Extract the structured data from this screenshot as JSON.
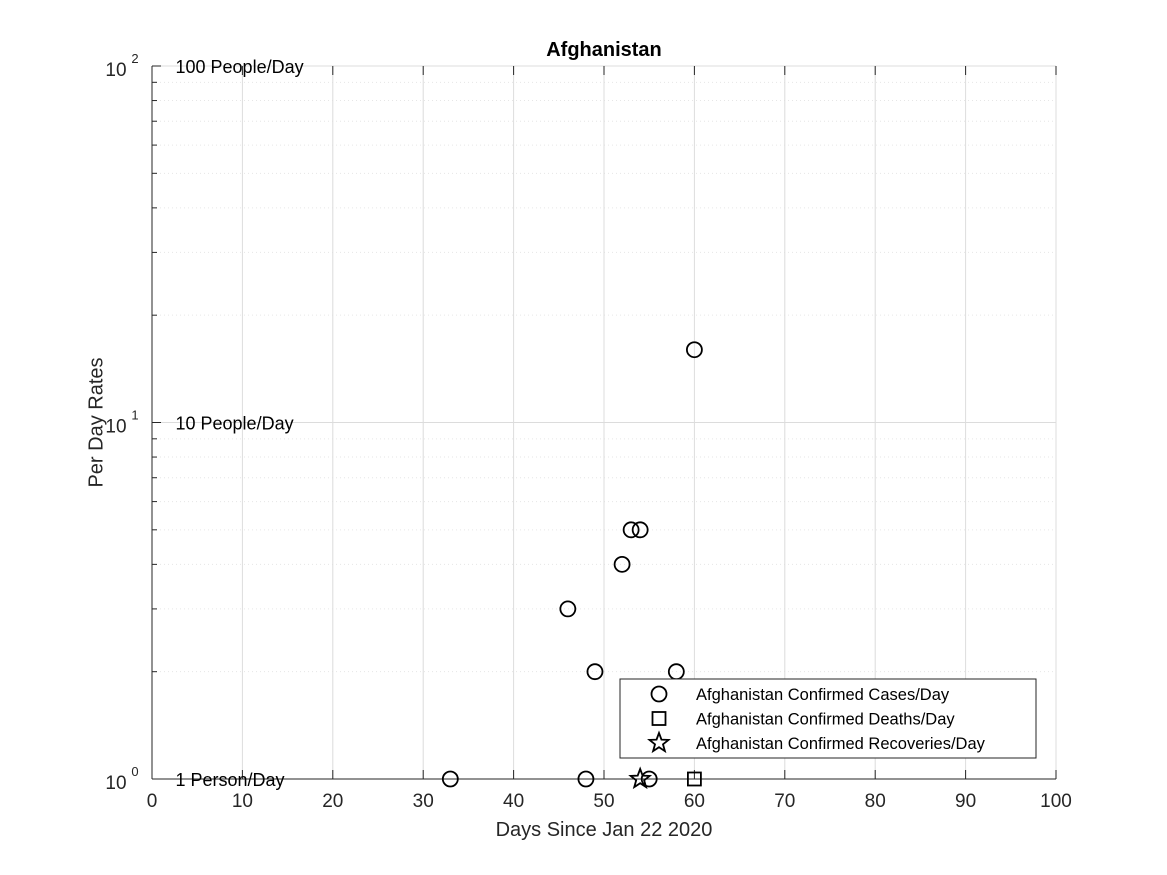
{
  "chart_data": {
    "type": "scatter",
    "title": "Afghanistan",
    "xlabel": "Days Since Jan 22 2020",
    "ylabel": "Per Day Rates",
    "xlim": [
      0,
      100
    ],
    "ylim": [
      1,
      100
    ],
    "yscale": "log",
    "grid": true,
    "x_ticks": [
      0,
      10,
      20,
      30,
      40,
      50,
      60,
      70,
      80,
      90,
      100
    ],
    "y_ticks": [
      {
        "value": 1,
        "base": "10",
        "exp": "0"
      },
      {
        "value": 10,
        "base": "10",
        "exp": "1"
      },
      {
        "value": 100,
        "base": "10",
        "exp": "2"
      }
    ],
    "annotations": [
      {
        "text": "100 People/Day",
        "y": 100
      },
      {
        "text": "10 People/Day",
        "y": 10
      },
      {
        "text": "1 Person/Day",
        "y": 1
      }
    ],
    "legend_position": "bottom-right",
    "series": [
      {
        "name": "Afghanistan Confirmed Cases/Day",
        "marker": "circle",
        "color": "#000000",
        "points": [
          {
            "x": 33,
            "y": 1
          },
          {
            "x": 46,
            "y": 3
          },
          {
            "x": 48,
            "y": 1
          },
          {
            "x": 49,
            "y": 2
          },
          {
            "x": 52,
            "y": 4
          },
          {
            "x": 53,
            "y": 5
          },
          {
            "x": 54,
            "y": 5
          },
          {
            "x": 55,
            "y": 1
          },
          {
            "x": 58,
            "y": 2
          },
          {
            "x": 60,
            "y": 16
          }
        ]
      },
      {
        "name": "Afghanistan Confirmed Deaths/Day",
        "marker": "square",
        "color": "#000000",
        "points": [
          {
            "x": 60,
            "y": 1
          }
        ]
      },
      {
        "name": "Afghanistan Confirmed Recoveries/Day",
        "marker": "star",
        "color": "#000000",
        "points": [
          {
            "x": 54,
            "y": 1
          }
        ]
      }
    ]
  }
}
